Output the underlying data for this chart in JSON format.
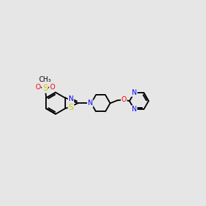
{
  "bg_color": "#e6e6e6",
  "bond_color": "#000000",
  "bond_width": 1.4,
  "atom_colors": {
    "N": "#0000ff",
    "S": "#cccc00",
    "O": "#ff0000",
    "C": "#000000"
  },
  "font_size": 7.0
}
